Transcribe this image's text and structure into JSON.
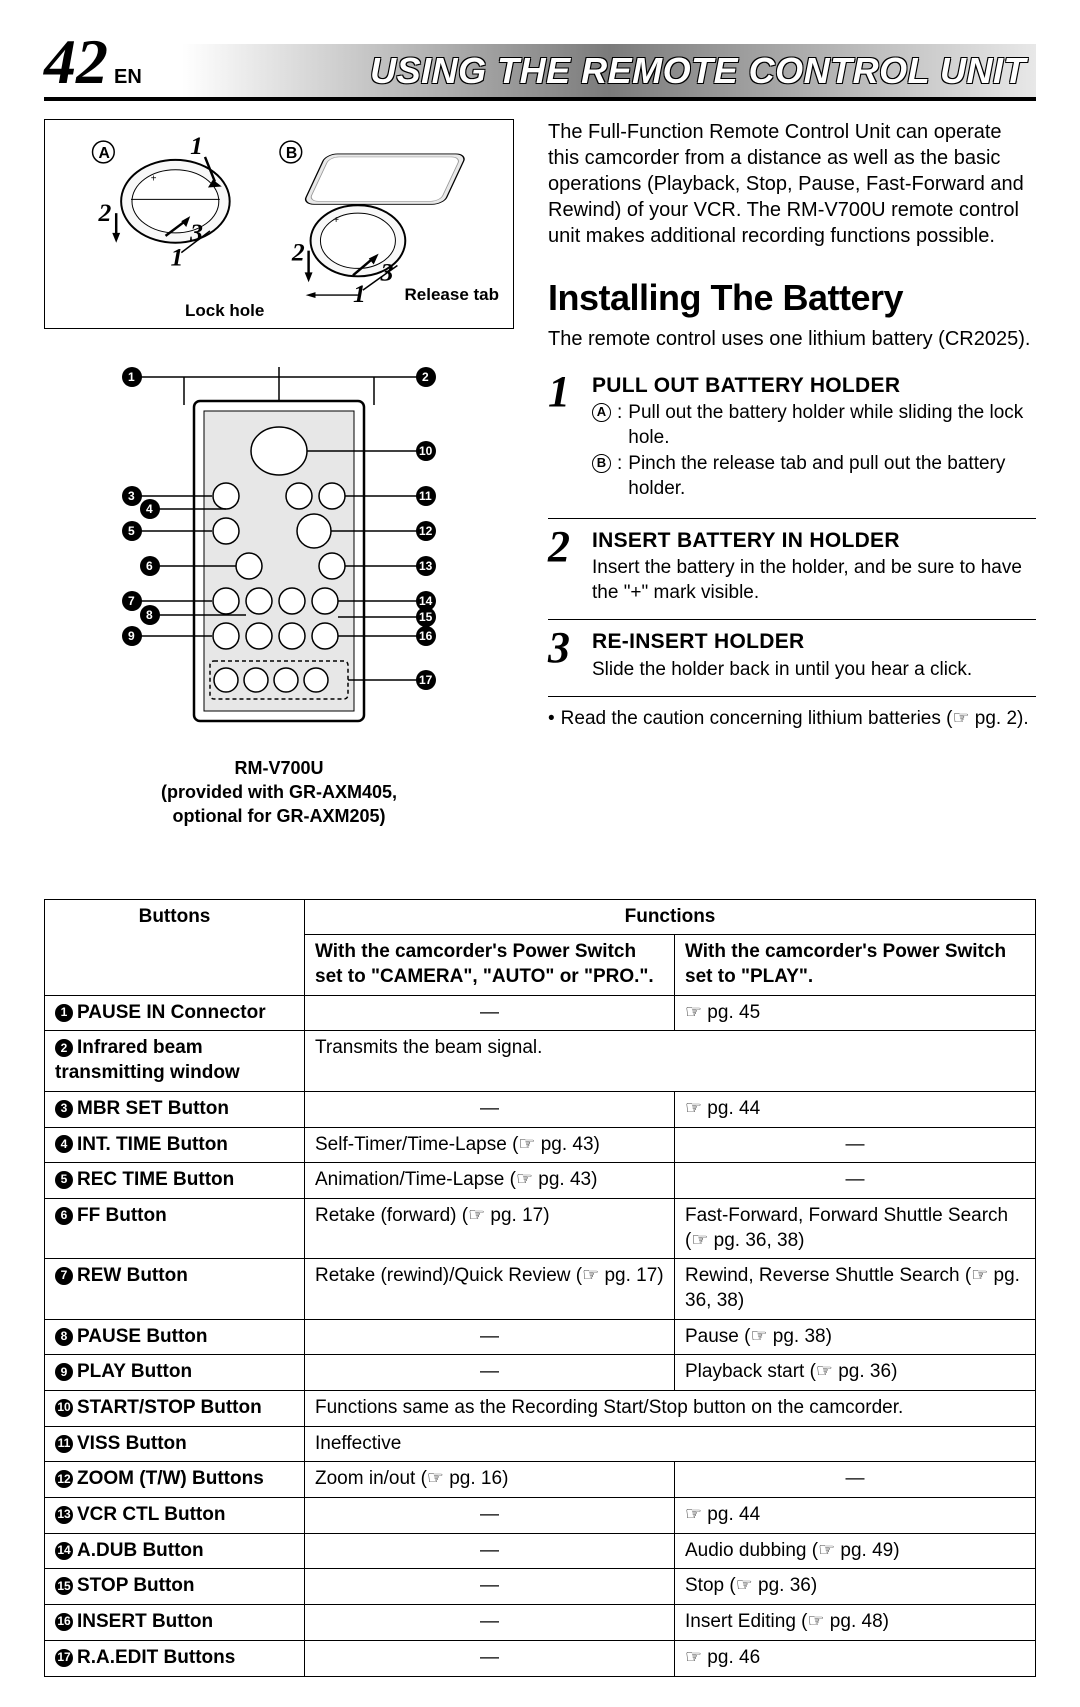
{
  "header": {
    "page_number": "42",
    "lang_code": "EN",
    "title": "USING THE REMOTE CONTROL UNIT"
  },
  "fig_labels": {
    "A": "A",
    "B": "B",
    "lock_hole": "Lock hole",
    "release_tab": "Release tab"
  },
  "remote_caption_line1": "RM-V700U",
  "remote_caption_line2": "(provided with GR-AXM405,",
  "remote_caption_line3": "optional for GR-AXM205)",
  "intro": "The Full-Function Remote Control Unit can operate this camcorder from a distance as well as the basic operations (Playback, Stop, Pause, Fast-Forward and Rewind) of your VCR. The RM-V700U remote control unit makes additional recording functions possible.",
  "section_heading": "Installing The Battery",
  "section_sub": "The remote control uses one lithium battery (CR2025).",
  "steps": [
    {
      "num": "1",
      "h": "PULL OUT BATTERY HOLDER",
      "a": "Pull out the battery holder while sliding the lock hole.",
      "b": "Pinch the release tab and pull out the battery holder."
    },
    {
      "num": "2",
      "h": "INSERT BATTERY IN HOLDER",
      "body": "Insert the battery in the holder, and be sure to have the \"+\" mark visible."
    },
    {
      "num": "3",
      "h": "RE-INSERT HOLDER",
      "body": "Slide the holder back in until you hear a click."
    }
  ],
  "note": "Read the caution concerning lithium batteries (☞ pg. 2).",
  "pg_glyph": "☞",
  "table": {
    "h_buttons": "Buttons",
    "h_functions": "Functions",
    "h_camera": "With the camcorder's Power Switch set to \"CAMERA\", \"AUTO\" or \"PRO.\".",
    "h_play": "With the camcorder's Power Switch set to \"PLAY\".",
    "rows": [
      {
        "n": "1",
        "name": "PAUSE IN Connector",
        "cam": "—",
        "play": "☞ pg. 45"
      },
      {
        "n": "2",
        "name": "Infrared beam transmitting window",
        "span": "Transmits the beam signal."
      },
      {
        "n": "3",
        "name": "MBR SET Button",
        "cam": "—",
        "play": "☞ pg. 44"
      },
      {
        "n": "4",
        "name": "INT. TIME Button",
        "cam": "Self-Timer/Time-Lapse (☞ pg. 43)",
        "play": "—"
      },
      {
        "n": "5",
        "name": "REC TIME Button",
        "cam": "Animation/Time-Lapse (☞ pg. 43)",
        "play": "—"
      },
      {
        "n": "6",
        "name": "FF Button",
        "cam": "Retake (forward) (☞ pg. 17)",
        "play": "Fast-Forward, Forward Shuttle Search (☞ pg. 36, 38)"
      },
      {
        "n": "7",
        "name": "REW Button",
        "cam": "Retake (rewind)/Quick Review (☞ pg. 17)",
        "play": "Rewind, Reverse Shuttle Search (☞ pg. 36, 38)"
      },
      {
        "n": "8",
        "name": "PAUSE Button",
        "cam": "—",
        "play": "Pause (☞ pg. 38)"
      },
      {
        "n": "9",
        "name": "PLAY Button",
        "cam": "—",
        "play": "Playback start (☞ pg. 36)"
      },
      {
        "n": "10",
        "name": "START/STOP Button",
        "span": "Functions same as the Recording Start/Stop button on the camcorder."
      },
      {
        "n": "11",
        "name": "VISS Button",
        "span": "Ineffective"
      },
      {
        "n": "12",
        "name": "ZOOM (T/W) Buttons",
        "cam": "Zoom in/out (☞ pg. 16)",
        "play": "—"
      },
      {
        "n": "13",
        "name": "VCR CTL Button",
        "cam": "—",
        "play": "☞ pg. 44"
      },
      {
        "n": "14",
        "name": "A.DUB Button",
        "cam": "—",
        "play": "Audio dubbing (☞ pg. 49)"
      },
      {
        "n": "15",
        "name": "STOP Button",
        "cam": "—",
        "play": "Stop (☞ pg. 36)"
      },
      {
        "n": "16",
        "name": "INSERT Button",
        "cam": "—",
        "play": "Insert Editing (☞ pg. 48)"
      },
      {
        "n": "17",
        "name": "R.A.EDIT Buttons",
        "cam": "—",
        "play": "☞ pg. 46"
      }
    ]
  }
}
